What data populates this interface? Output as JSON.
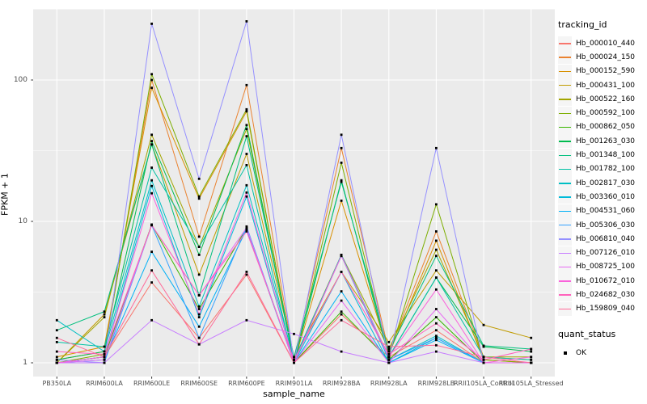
{
  "chart_data": {
    "type": "line",
    "xlabel": "sample_name",
    "ylabel": "FPKM + 1",
    "y_scale": "log10",
    "y_ticks": [
      1,
      10,
      100
    ],
    "y_tick_labels": [
      "1",
      "10",
      "100"
    ],
    "y_minor_ticks": [
      3.1623,
      31.623,
      316.23
    ],
    "ylim_log": [
      0.8,
      320
    ],
    "grid": "major-white-minor-white-on-gray",
    "legend_position": "right",
    "panel_bg": "#EBEBEB",
    "categories": [
      "PB350LA",
      "RRIM600LA",
      "RRIM600LE",
      "RRIM600SE",
      "RRIM600PE",
      "RRIM901LA",
      "RRIM928BA",
      "RRIM928LA",
      "RRIM928LB",
      "RRII105LA_Control",
      "RRII105LA_Stressed"
    ],
    "series": [
      {
        "name": "Hb_000010_440",
        "color": "#F8766D",
        "values": [
          1.0,
          1.1,
          3.7,
          1.5,
          4.2,
          1.0,
          2.2,
          1.1,
          1.7,
          1.0,
          1.0
        ]
      },
      {
        "name": "Hb_000024_150",
        "color": "#EA8331",
        "values": [
          1.05,
          1.2,
          100,
          7.8,
          92,
          1.05,
          33,
          1.2,
          8.5,
          1.1,
          1.05
        ]
      },
      {
        "name": "Hb_000152_590",
        "color": "#D89000",
        "values": [
          1.1,
          1.3,
          88,
          14.5,
          60,
          1.0,
          14,
          1.15,
          7.3,
          1.05,
          1.0
        ]
      },
      {
        "name": "Hb_000431_100",
        "color": "#C09B00",
        "values": [
          1.0,
          2.2,
          35,
          4.2,
          30,
          1.1,
          4.4,
          1.4,
          4.5,
          1.85,
          1.5
        ]
      },
      {
        "name": "Hb_000522_160",
        "color": "#A3A500",
        "values": [
          1.0,
          2.1,
          41,
          6.6,
          45,
          1.05,
          5.8,
          1.25,
          6.3,
          1.1,
          1.1
        ]
      },
      {
        "name": "Hb_000592_100",
        "color": "#7CAE00",
        "values": [
          1.0,
          1.15,
          110,
          15,
          62,
          1.0,
          26,
          1.1,
          13.2,
          1.05,
          1.0
        ]
      },
      {
        "name": "Hb_000862_050",
        "color": "#39B600",
        "values": [
          1.0,
          1.1,
          9.5,
          2.4,
          9.0,
          1.0,
          2.3,
          1.05,
          2.1,
          1.0,
          1.0
        ]
      },
      {
        "name": "Hb_001263_030",
        "color": "#00BB4E",
        "values": [
          1.05,
          1.2,
          37,
          5.8,
          48,
          1.0,
          19.5,
          1.1,
          4.0,
          1.3,
          1.2
        ]
      },
      {
        "name": "Hb_001348_100",
        "color": "#00BF7D",
        "values": [
          1.7,
          2.3,
          35,
          3.0,
          40,
          1.1,
          19,
          1.2,
          5.7,
          1.32,
          1.25
        ]
      },
      {
        "name": "Hb_001782_100",
        "color": "#00C1A3",
        "values": [
          1.4,
          1.3,
          24,
          6.6,
          25,
          1.0,
          5.8,
          1.1,
          4.0,
          1.1,
          1.05
        ]
      },
      {
        "name": "Hb_002817_030",
        "color": "#00BFC4",
        "values": [
          2.0,
          1.2,
          19.5,
          2.5,
          18,
          1.05,
          5.7,
          1.05,
          1.55,
          1.0,
          1.0
        ]
      },
      {
        "name": "Hb_003360_010",
        "color": "#00BBDA",
        "values": [
          1.0,
          1.1,
          17.8,
          2.1,
          15,
          1.0,
          4.4,
          1.0,
          1.5,
          1.0,
          1.0
        ]
      },
      {
        "name": "Hb_004531_060",
        "color": "#00B0F6",
        "values": [
          1.0,
          1.05,
          6.1,
          1.8,
          8.8,
          1.0,
          3.2,
          1.0,
          1.45,
          1.0,
          1.0
        ]
      },
      {
        "name": "Hb_005306_030",
        "color": "#35A2FF",
        "values": [
          1.0,
          1.0,
          9.4,
          1.5,
          9.2,
          1.0,
          5.75,
          1.05,
          1.5,
          1.0,
          1.0
        ]
      },
      {
        "name": "Hb_006810_040",
        "color": "#9590FF",
        "values": [
          1.05,
          1.0,
          250,
          20,
          260,
          1.0,
          41,
          1.05,
          33,
          1.0,
          1.0
        ]
      },
      {
        "name": "Hb_007126_010",
        "color": "#C77CFF",
        "values": [
          1.0,
          1.0,
          2.0,
          1.35,
          2.0,
          1.6,
          1.2,
          1.0,
          1.2,
          1.0,
          1.0
        ]
      },
      {
        "name": "Hb_008725_100",
        "color": "#E76BF3",
        "values": [
          1.0,
          1.05,
          9.4,
          3.0,
          9.0,
          1.0,
          2.75,
          1.0,
          2.4,
          1.0,
          1.0
        ]
      },
      {
        "name": "Hb_010672_010",
        "color": "#FA62DB",
        "values": [
          1.0,
          1.1,
          15.8,
          2.2,
          16,
          1.0,
          5.7,
          1.1,
          3.3,
          1.0,
          1.1
        ]
      },
      {
        "name": "Hb_024682_030",
        "color": "#FF62BC",
        "values": [
          1.2,
          1.15,
          9.4,
          3.0,
          8.5,
          1.05,
          4.4,
          1.15,
          1.9,
          1.05,
          1.25
        ]
      },
      {
        "name": "Hb_159809_040",
        "color": "#FF6A98",
        "values": [
          1.5,
          1.1,
          4.5,
          1.35,
          4.4,
          1.0,
          2.0,
          1.3,
          1.33,
          1.1,
          1.0
        ]
      }
    ],
    "point_marker": {
      "shape": "square",
      "color": "#000000"
    }
  },
  "legend": {
    "title": "tracking_id",
    "quant_title": "quant_status",
    "quant_items": [
      {
        "label": "OK"
      }
    ]
  }
}
